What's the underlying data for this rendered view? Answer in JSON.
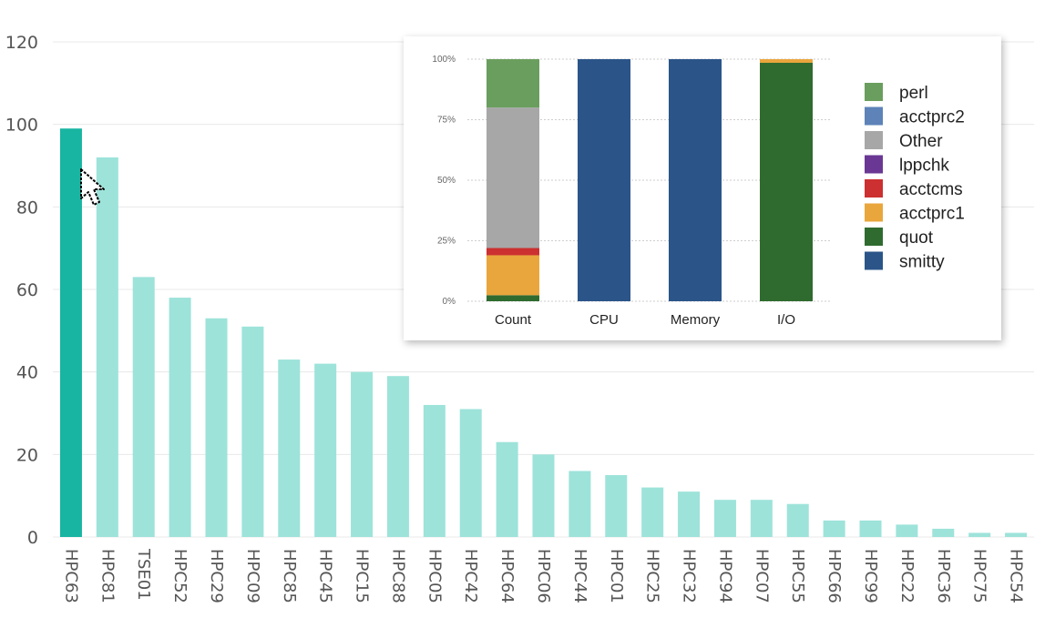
{
  "chart_data": [
    {
      "type": "bar",
      "categories": [
        "HPC63",
        "HPC81",
        "TSE01",
        "HPC52",
        "HPC29",
        "HPC09",
        "HPC85",
        "HPC45",
        "HPC15",
        "HPC88",
        "HPC05",
        "HPC42",
        "HPC64",
        "HPC06",
        "HPC44",
        "HPC01",
        "HPC25",
        "HPC32",
        "HPC94",
        "HPC07",
        "HPC55",
        "HPC66",
        "HPC99",
        "HPC22",
        "HPC36",
        "HPC75",
        "HPC54"
      ],
      "values": [
        99,
        92,
        63,
        58,
        53,
        51,
        43,
        42,
        40,
        39,
        32,
        31,
        23,
        20,
        16,
        15,
        12,
        11,
        9,
        9,
        8,
        4,
        4,
        3,
        2,
        1,
        1
      ],
      "highlighted_category": "HPC63",
      "ylim": [
        0,
        120
      ],
      "yticks": [
        0,
        20,
        40,
        60,
        80,
        100,
        120
      ],
      "grid": true,
      "colors": {
        "bar": "#9de3da",
        "highlight": "#18b5a2",
        "grid": "#e8e8e8",
        "tick": "#555555"
      }
    },
    {
      "type": "bar",
      "stacked": true,
      "normalized": true,
      "categories": [
        "Count",
        "CPU",
        "Memory",
        "I/O"
      ],
      "ytick_labels": [
        "0%",
        "25%",
        "50%",
        "75%",
        "100%"
      ],
      "ylim": [
        0,
        100
      ],
      "legend_position": "right",
      "series": [
        {
          "name": "smitty",
          "color": "#2b5589",
          "values": [
            0,
            100,
            100,
            0
          ]
        },
        {
          "name": "quot",
          "color": "#2f6b2f",
          "values": [
            2.5,
            0,
            0,
            98.5
          ]
        },
        {
          "name": "acctprc1",
          "color": "#e9a63c",
          "values": [
            16.5,
            0,
            0,
            1.5
          ]
        },
        {
          "name": "acctcms",
          "color": "#cc3030",
          "values": [
            3,
            0,
            0,
            0
          ]
        },
        {
          "name": "lppchk",
          "color": "#6a3894",
          "values": [
            0,
            0,
            0,
            0
          ]
        },
        {
          "name": "Other",
          "color": "#a7a7a7",
          "values": [
            58,
            0,
            0,
            0
          ]
        },
        {
          "name": "acctprc2",
          "color": "#5d83b8",
          "values": [
            0,
            0,
            0,
            0
          ]
        },
        {
          "name": "perl",
          "color": "#6a9e5e",
          "values": [
            20,
            0,
            0,
            0
          ]
        }
      ],
      "legend_order": [
        "perl",
        "acctprc2",
        "Other",
        "lppchk",
        "acctcms",
        "acctprc1",
        "quot",
        "smitty"
      ]
    }
  ],
  "cursor": {
    "icon": "arrow-pointer-icon"
  }
}
